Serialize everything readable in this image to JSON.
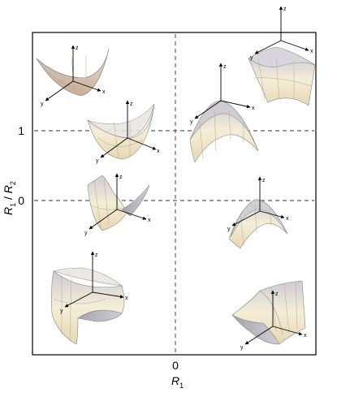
{
  "axes": {
    "x_label": "R",
    "x_label_sub": "1",
    "y_label_r1": "R",
    "y_label_r1_sub": "1",
    "y_label_slash": " / ",
    "y_label_r2": "R",
    "y_label_r2_sub": "2",
    "y_ticks": [
      {
        "label": "1"
      },
      {
        "label": "0"
      }
    ],
    "x_ticks": [
      {
        "label": "0"
      }
    ]
  },
  "coordinate_axis_letters": {
    "x": "x",
    "y": "y",
    "z": "z"
  },
  "surfaces": [
    {
      "name": "bowl-top-left"
    },
    {
      "name": "bowl-upper-left"
    },
    {
      "name": "half-bowl-left"
    },
    {
      "name": "saddle-bottom-left"
    },
    {
      "name": "dome-top-right"
    },
    {
      "name": "dome-upper-right"
    },
    {
      "name": "cylinder-right"
    },
    {
      "name": "saddle-bottom-right"
    }
  ],
  "colors": {
    "surface_light": "#f4ecd2",
    "surface_mid": "#d8d4c9",
    "surface_shadow": "#9f9aa6",
    "surface_warm": "#e9c49a",
    "frame": "#000000",
    "dashed": "#333333"
  }
}
